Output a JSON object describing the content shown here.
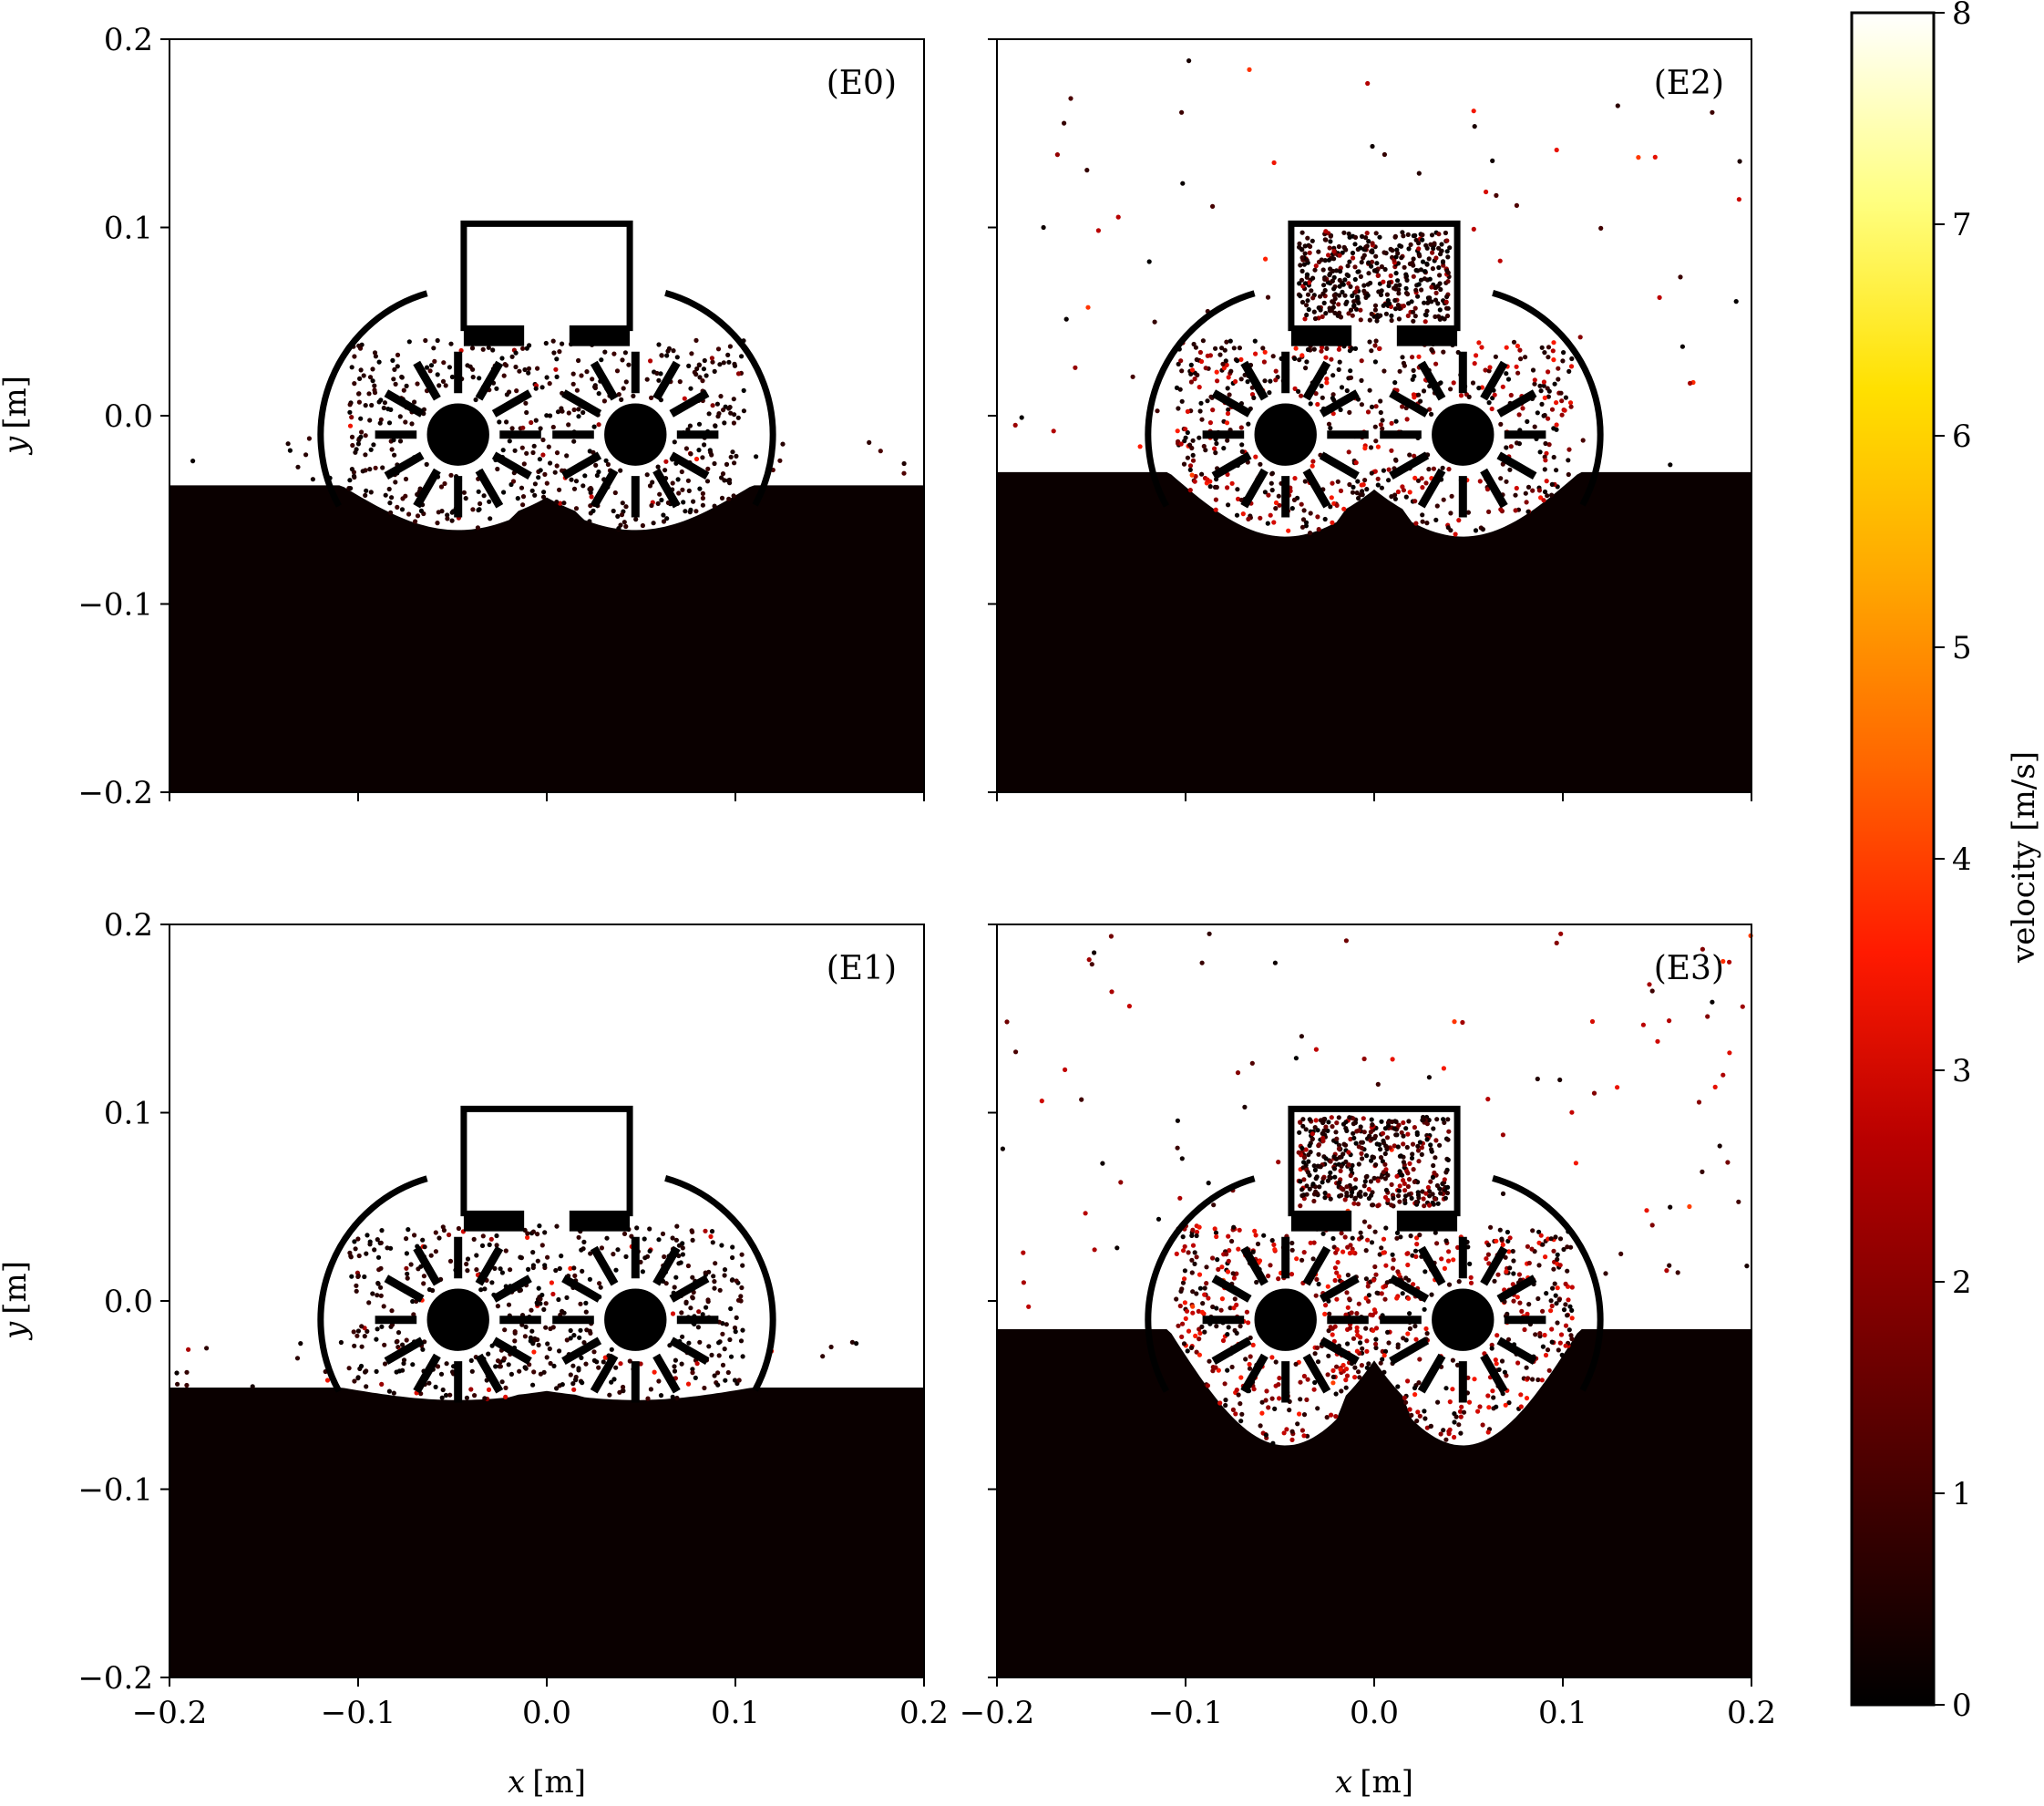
{
  "chart_data": {
    "type": "scatter",
    "x_axis": {
      "label_var": "x",
      "label_unit": "[m]",
      "range": [
        -0.2,
        0.2
      ],
      "ticks": [
        -0.2,
        -0.1,
        0.0,
        0.1,
        0.2
      ],
      "tick_labels": [
        "−0.2",
        "−0.1",
        "0.0",
        "0.1",
        "0.2"
      ]
    },
    "y_axis": {
      "label_var": "y",
      "label_unit": "[m]",
      "range": [
        -0.2,
        0.2
      ],
      "ticks": [
        -0.2,
        -0.1,
        0.0,
        0.1,
        0.2
      ],
      "tick_labels": [
        "−0.2",
        "−0.1",
        "0.0",
        "0.1",
        "0.2"
      ]
    },
    "colorbar": {
      "label": "velocity [m/s]",
      "range": [
        0,
        8
      ],
      "ticks": [
        "0",
        "1",
        "2",
        "3",
        "4",
        "5",
        "6",
        "7",
        "8"
      ],
      "colormap": [
        "#000000",
        "#3a0000",
        "#7a0000",
        "#b80000",
        "#ff1a00",
        "#ff6600",
        "#ffa800",
        "#ffe000",
        "#ffff80",
        "#ffffff"
      ]
    },
    "panels": [
      {
        "label": "(E0)",
        "surface_level": -0.037,
        "excavation_depth": -0.062,
        "bucket_filled": false,
        "spread": 0.8,
        "hot": 0.04
      },
      {
        "label": "(E2)",
        "surface_level": -0.03,
        "excavation_depth": -0.066,
        "bucket_filled": true,
        "spread": 1.6,
        "hot": 0.35
      },
      {
        "label": "(E1)",
        "surface_level": -0.046,
        "excavation_depth": -0.053,
        "bucket_filled": false,
        "spread": 0.8,
        "hot": 0.05
      },
      {
        "label": "(E3)",
        "surface_level": -0.015,
        "excavation_depth": -0.08,
        "bucket_filled": true,
        "spread": 2.6,
        "hot": 0.55
      }
    ],
    "wheels": {
      "centers_x": [
        -0.047,
        0.047
      ],
      "center_y": -0.01,
      "hub_radius": 0.017,
      "spokes": 12
    },
    "grid": false
  }
}
